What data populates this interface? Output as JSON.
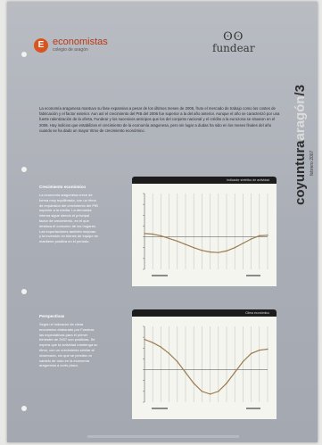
{
  "document": {
    "header": {
      "left_logo_mark": "E",
      "left_logo_text": "economistas",
      "left_logo_sub": "colegio de aragón",
      "right_logo_mark": "ʘʘ",
      "right_logo_text": "fundear"
    },
    "sidebar": {
      "title_part1": "coyuntura",
      "title_part2": "aragón",
      "title_part3": "/3",
      "subtitle": "febrero 2007"
    },
    "intro_text": "La economía aragonesa mantuvo su fase expansiva a pesar de los últimos meses de 2006, fruto el mercado de trabajo como los costes de fabricación y el factor exterior. Aun así el crecimiento del PIB del 2006 fue superior a la del año anterior. Aunque el año se caracterizó por una fuerte ralentización de la oferta, Fundear y los sucesivos anticipos que los del conjunto nacional y el crédito a la eurozona se situaron en el 2006. Hay indicios que estabilizan el crecimiento de la economía aragonesa, pero sin lugar a dudas ha sido en los meses finales del año cuando se ha dado un mayor ritmo de crecimiento económico.",
    "sections": [
      {
        "title": "Crecimiento económico",
        "text": "La economía aragonesa crece de forma muy equilibrada, con un ritmo de expansión del crecimiento del PIB superior a la media. La demanda interna sigue siendo el principal factor de crecimiento, en el que destaca el consumo de los hogares. Las exportaciones también mejoran y la inversión en bienes de equipo se mantiene positiva en el periodo."
      },
      {
        "title": "Perspectivas",
        "text": "Según el indicador de clima económico elaborado por Fundear, las expectativas para el primer trimestre de 2007 son positivas. Se espera que la actividad mantenga su ritmo, con un crecimiento similar al observado, sin que se perciba un cambio de ciclo en la economía aragonesa a corto plazo."
      }
    ],
    "charts": [
      {
        "header_label": "Indicador sintético de actividad"
      },
      {
        "header_label": "Clima económico"
      }
    ]
  },
  "chart_data": [
    {
      "type": "line",
      "x": [
        1,
        2,
        3,
        4,
        5,
        6,
        7,
        8,
        9,
        10,
        11,
        12,
        13,
        14,
        15,
        16
      ],
      "series": [
        {
          "values": [
            0.6,
            0.5,
            0.2,
            -0.3,
            -0.8,
            -1.4,
            -2.0,
            -2.5,
            -2.8,
            -2.9,
            -2.6,
            -2.0,
            -1.2,
            -0.4,
            0.2,
            0.3
          ]
        }
      ],
      "ylim": [
        -6,
        8
      ],
      "grid": true
    },
    {
      "type": "line",
      "x": [
        1,
        2,
        3,
        4,
        5,
        6,
        7,
        8,
        9,
        10,
        11,
        12,
        13,
        14,
        15,
        16
      ],
      "series": [
        {
          "values": [
            5.6,
            5.0,
            4.2,
            3.0,
            1.5,
            -0.5,
            -2.5,
            -4.0,
            -4.5,
            -4.0,
            -2.5,
            -0.5,
            1.5,
            3.0,
            3.6,
            3.8
          ]
        }
      ],
      "ylim": [
        -6,
        8
      ],
      "grid": true
    }
  ],
  "colors": {
    "page_background": "#b9bcc3",
    "chart_header": "#1c1c1c",
    "chart_background": "#f5f5f0",
    "line": "#9c7c4e",
    "logo_accent": "#d9541e"
  }
}
